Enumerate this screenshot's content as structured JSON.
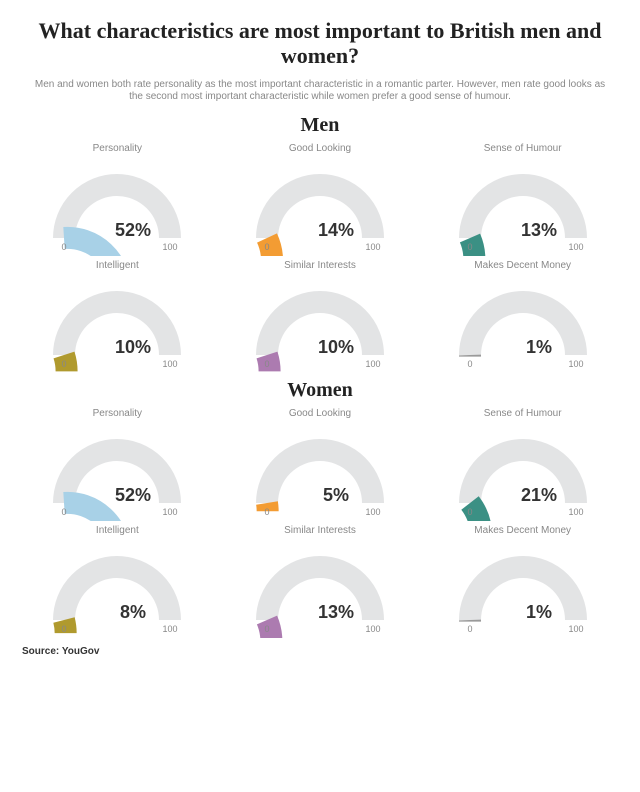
{
  "title": "What characteristics are most important to British men and women?",
  "title_fontsize": 22,
  "subtitle": "Men and women both rate personality as the most important characteristic in a romantic parter. However, men rate good looks as the second most important characteristic while women prefer a good sense of humour.",
  "subtitle_fontsize": 10,
  "source": "Source: YouGov",
  "source_fontsize": 10,
  "sections": [
    {
      "heading": "Men",
      "heading_fontsize": 20,
      "key": "men"
    },
    {
      "heading": "Women",
      "heading_fontsize": 20,
      "key": "women"
    }
  ],
  "gauge": {
    "min": 0,
    "max": 100,
    "tick_min_label": "0",
    "tick_max_label": "100",
    "track_color": "#e3e4e5",
    "stroke_width": 22,
    "outer_radius": 64,
    "value_fontsize": 18,
    "label_fontsize": 10,
    "tick_fontsize": 9
  },
  "characteristics": [
    {
      "label": "Personality",
      "color": "#a8d1e7",
      "men": 52,
      "women": 52
    },
    {
      "label": "Good Looking",
      "color": "#f39c33",
      "men": 14,
      "women": 5
    },
    {
      "label": "Sense of Humour",
      "color": "#3b9084",
      "men": 13,
      "women": 21
    },
    {
      "label": "Intelligent",
      "color": "#b09a2e",
      "men": 10,
      "women": 8
    },
    {
      "label": "Similar Interests",
      "color": "#ac7bb0",
      "men": 10,
      "women": 13
    },
    {
      "label": "Makes Decent Money",
      "color": "#9a9a9a",
      "men": 1,
      "women": 1
    }
  ]
}
